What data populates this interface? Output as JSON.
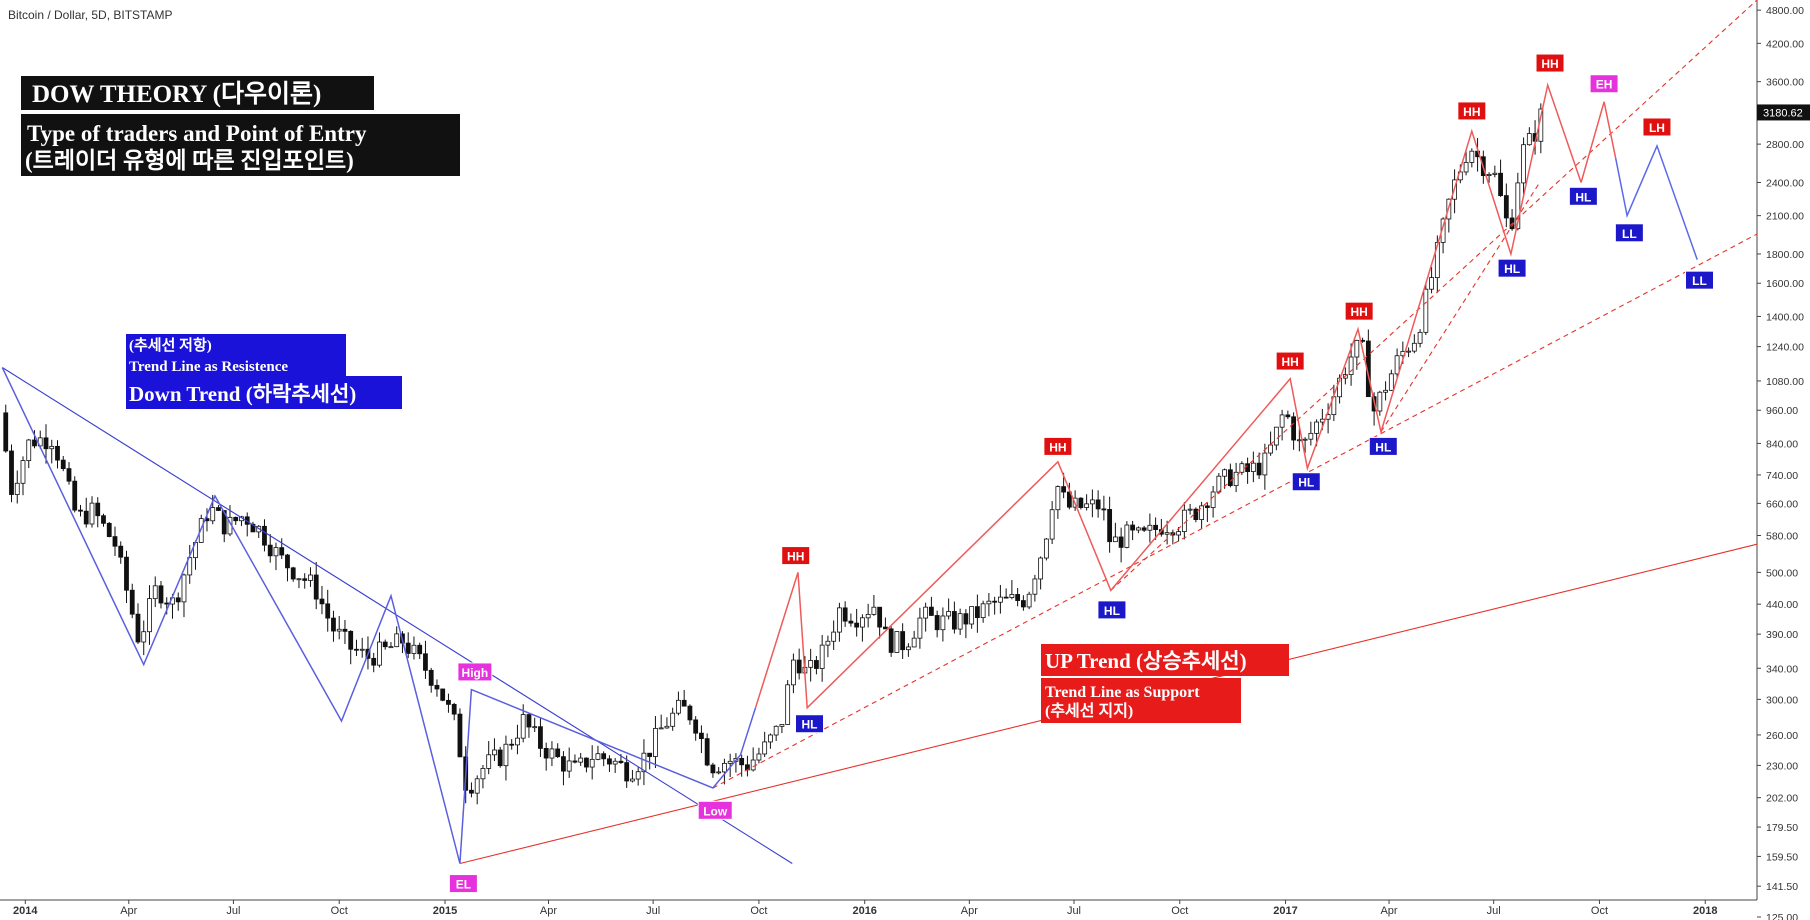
{
  "window": {
    "title": "Bitcoin / Dollar, 5D, BITSTAMP"
  },
  "price_tag": "3180.62",
  "chart_data": {
    "type": "candlestick",
    "title": "Bitcoin / Dollar, 5D, BITSTAMP",
    "y_scale": "log",
    "ylim": [
      125,
      5000
    ],
    "xlim": [
      "2013-12-10",
      "2018-02-15"
    ],
    "x_ticks": [
      {
        "date": "2014-01-01",
        "label": "2014"
      },
      {
        "date": "2014-04-01",
        "label": "Apr"
      },
      {
        "date": "2014-07-01",
        "label": "Jul"
      },
      {
        "date": "2014-10-01",
        "label": "Oct"
      },
      {
        "date": "2015-01-01",
        "label": "2015"
      },
      {
        "date": "2015-04-01",
        "label": "Apr"
      },
      {
        "date": "2015-07-01",
        "label": "Jul"
      },
      {
        "date": "2015-10-01",
        "label": "Oct"
      },
      {
        "date": "2016-01-01",
        "label": "2016"
      },
      {
        "date": "2016-04-01",
        "label": "Apr"
      },
      {
        "date": "2016-07-01",
        "label": "Jul"
      },
      {
        "date": "2016-10-01",
        "label": "Oct"
      },
      {
        "date": "2017-01-01",
        "label": "2017"
      },
      {
        "date": "2017-04-01",
        "label": "Apr"
      },
      {
        "date": "2017-07-01",
        "label": "Jul"
      },
      {
        "date": "2017-10-01",
        "label": "Oct"
      },
      {
        "date": "2018-01-01",
        "label": "2018"
      }
    ],
    "y_ticks": [
      "4800.00",
      "4200.00",
      "3600.00",
      "3180.62",
      "2800.00",
      "2400.00",
      "2100.00",
      "1800.00",
      "1600.00",
      "1400.00",
      "1240.00",
      "1080.00",
      "960.00",
      "840.00",
      "740.00",
      "660.00",
      "580.00",
      "500.00",
      "440.00",
      "390.00",
      "340.00",
      "300.00",
      "260.00",
      "230.00",
      "202.00",
      "179.50",
      "159.50",
      "141.50",
      "125.00"
    ],
    "close_path": [
      [
        "2013-12-10",
        950
      ],
      [
        "2013-12-20",
        700
      ],
      [
        "2014-01-05",
        850
      ],
      [
        "2014-01-25",
        860
      ],
      [
        "2014-02-15",
        620
      ],
      [
        "2014-03-01",
        640
      ],
      [
        "2014-03-20",
        560
      ],
      [
        "2014-04-10",
        380
      ],
      [
        "2014-04-25",
        470
      ],
      [
        "2014-05-10",
        440
      ],
      [
        "2014-05-25",
        540
      ],
      [
        "2014-06-10",
        650
      ],
      [
        "2014-06-25",
        600
      ],
      [
        "2014-07-10",
        630
      ],
      [
        "2014-07-25",
        590
      ],
      [
        "2014-08-10",
        530
      ],
      [
        "2014-08-25",
        500
      ],
      [
        "2014-09-10",
        470
      ],
      [
        "2014-09-25",
        400
      ],
      [
        "2014-10-10",
        370
      ],
      [
        "2014-10-25",
        355
      ],
      [
        "2014-11-10",
        365
      ],
      [
        "2014-11-25",
        380
      ],
      [
        "2014-12-10",
        350
      ],
      [
        "2014-12-25",
        320
      ],
      [
        "2015-01-10",
        270
      ],
      [
        "2015-01-20",
        210
      ],
      [
        "2015-02-05",
        230
      ],
      [
        "2015-02-20",
        240
      ],
      [
        "2015-03-10",
        275
      ],
      [
        "2015-03-25",
        250
      ],
      [
        "2015-04-10",
        235
      ],
      [
        "2015-04-25",
        225
      ],
      [
        "2015-05-10",
        240
      ],
      [
        "2015-05-25",
        235
      ],
      [
        "2015-06-10",
        225
      ],
      [
        "2015-06-25",
        240
      ],
      [
        "2015-07-10",
        270
      ],
      [
        "2015-07-25",
        290
      ],
      [
        "2015-08-05",
        280
      ],
      [
        "2015-08-20",
        230
      ],
      [
        "2015-09-05",
        235
      ],
      [
        "2015-09-20",
        230
      ],
      [
        "2015-10-05",
        245
      ],
      [
        "2015-10-20",
        270
      ],
      [
        "2015-11-01",
        360
      ],
      [
        "2015-11-12",
        330
      ],
      [
        "2015-11-25",
        360
      ],
      [
        "2015-12-10",
        430
      ],
      [
        "2015-12-25",
        420
      ],
      [
        "2016-01-10",
        440
      ],
      [
        "2016-01-20",
        380
      ],
      [
        "2016-02-05",
        375
      ],
      [
        "2016-02-20",
        420
      ],
      [
        "2016-03-05",
        410
      ],
      [
        "2016-03-20",
        410
      ],
      [
        "2016-04-05",
        420
      ],
      [
        "2016-04-20",
        440
      ],
      [
        "2016-05-05",
        445
      ],
      [
        "2016-05-20",
        450
      ],
      [
        "2016-06-05",
        560
      ],
      [
        "2016-06-15",
        720
      ],
      [
        "2016-06-25",
        650
      ],
      [
        "2016-07-10",
        650
      ],
      [
        "2016-07-25",
        655
      ],
      [
        "2016-08-02",
        560
      ],
      [
        "2016-08-15",
        580
      ],
      [
        "2016-08-30",
        575
      ],
      [
        "2016-09-15",
        605
      ],
      [
        "2016-09-30",
        610
      ],
      [
        "2016-10-15",
        640
      ],
      [
        "2016-10-30",
        700
      ],
      [
        "2016-11-15",
        740
      ],
      [
        "2016-11-30",
        750
      ],
      [
        "2016-12-15",
        780
      ],
      [
        "2016-12-31",
        960
      ],
      [
        "2017-01-08",
        880
      ],
      [
        "2017-01-15",
        820
      ],
      [
        "2017-01-28",
        910
      ],
      [
        "2017-02-10",
        1000
      ],
      [
        "2017-02-25",
        1180
      ],
      [
        "2017-03-08",
        1250
      ],
      [
        "2017-03-18",
        950
      ],
      [
        "2017-03-28",
        1050
      ],
      [
        "2017-04-10",
        1190
      ],
      [
        "2017-04-25",
        1300
      ],
      [
        "2017-05-10",
        1700
      ],
      [
        "2017-05-25",
        2300
      ],
      [
        "2017-06-10",
        2800
      ],
      [
        "2017-06-20",
        2600
      ],
      [
        "2017-07-01",
        2500
      ],
      [
        "2017-07-15",
        1950
      ],
      [
        "2017-07-25",
        2700
      ],
      [
        "2017-08-05",
        2900
      ],
      [
        "2017-08-15",
        3300
      ]
    ],
    "down_zigzag": [
      [
        "2013-12-12",
        1140
      ],
      [
        "2014-04-14",
        345
      ],
      [
        "2014-06-15",
        680
      ],
      [
        "2014-10-03",
        275
      ],
      [
        "2014-11-15",
        455
      ],
      [
        "2015-01-14",
        155
      ],
      [
        "2015-01-24",
        312
      ],
      [
        "2015-08-22",
        210
      ],
      [
        "2015-09-15",
        240
      ],
      [
        "2015-09-28",
        290
      ]
    ],
    "up_zigzag": [
      [
        "2015-09-28",
        290
      ],
      [
        "2015-11-04",
        500
      ],
      [
        "2015-11-12",
        290
      ],
      [
        "2016-06-17",
        780
      ],
      [
        "2016-08-02",
        465
      ],
      [
        "2017-01-05",
        1090
      ],
      [
        "2017-01-20",
        760
      ],
      [
        "2017-03-05",
        1330
      ],
      [
        "2017-03-25",
        880
      ],
      [
        "2017-06-12",
        2950
      ],
      [
        "2017-07-16",
        1800
      ],
      [
        "2017-08-17",
        3550
      ],
      [
        "2017-09-15",
        2400
      ]
    ],
    "projection": [
      [
        "2017-09-15",
        2400
      ],
      [
        "2017-10-05",
        3320
      ],
      [
        "2017-10-15",
        2650
      ],
      [
        "2017-10-25",
        2100
      ],
      [
        "2017-11-20",
        2780
      ],
      [
        "2017-12-25",
        1760
      ]
    ],
    "trend_lines": [
      {
        "kind": "down",
        "from": [
          "2013-12-12",
          1140
        ],
        "to": [
          "2015-10-30",
          155
        ]
      },
      {
        "kind": "support",
        "from": [
          "2015-01-14",
          155
        ],
        "to": [
          "2018-02-15",
          560
        ]
      },
      {
        "kind": "support-dashed",
        "from": [
          "2015-08-22",
          210
        ],
        "to": [
          "2018-02-15",
          1950
        ]
      },
      {
        "kind": "support-dashed",
        "from": [
          "2016-08-02",
          465
        ],
        "to": [
          "2018-02-15",
          5000
        ]
      },
      {
        "kind": "support-dashed",
        "from": [
          "2017-03-25",
          880
        ],
        "to": [
          "2017-08-10",
          2400
        ]
      }
    ],
    "swing_labels": [
      {
        "text": "HH",
        "kind": "hh",
        "at": [
          "2015-11-02",
          535
        ]
      },
      {
        "text": "HL",
        "kind": "hl",
        "at": [
          "2015-11-14",
          272
        ]
      },
      {
        "text": "HH",
        "kind": "hh",
        "at": [
          "2016-06-17",
          830
        ]
      },
      {
        "text": "HL",
        "kind": "hl",
        "at": [
          "2016-08-03",
          430
        ]
      },
      {
        "text": "HH",
        "kind": "hh",
        "at": [
          "2017-01-05",
          1170
        ]
      },
      {
        "text": "HL",
        "kind": "hl",
        "at": [
          "2017-01-19",
          720
        ]
      },
      {
        "text": "HH",
        "kind": "hh",
        "at": [
          "2017-03-06",
          1430
        ]
      },
      {
        "text": "HL",
        "kind": "hl",
        "at": [
          "2017-03-27",
          830
        ]
      },
      {
        "text": "HH",
        "kind": "hh",
        "at": [
          "2017-06-12",
          3200
        ]
      },
      {
        "text": "HL",
        "kind": "hl",
        "at": [
          "2017-07-17",
          1700
        ]
      },
      {
        "text": "HH",
        "kind": "hh",
        "at": [
          "2017-08-19",
          3880
        ]
      },
      {
        "text": "HL",
        "kind": "hl",
        "at": [
          "2017-09-17",
          2270
        ]
      },
      {
        "text": "EH",
        "kind": "eh",
        "at": [
          "2017-10-05",
          3570
        ]
      },
      {
        "text": "LL",
        "kind": "ll",
        "at": [
          "2017-10-27",
          1960
        ]
      },
      {
        "text": "LH",
        "kind": "lh",
        "at": [
          "2017-11-20",
          3000
        ]
      },
      {
        "text": "LL",
        "kind": "ll",
        "at": [
          "2017-12-27",
          1620
        ]
      },
      {
        "text": "High",
        "kind": "mag",
        "at": [
          "2015-01-27",
          335
        ]
      },
      {
        "text": "Low",
        "kind": "mag",
        "at": [
          "2015-08-24",
          192
        ]
      },
      {
        "text": "EL",
        "kind": "mag",
        "at": [
          "2015-01-17",
          143
        ]
      }
    ]
  },
  "annotations": {
    "dow_title": "DOW THEORY (다우이론)",
    "entry_line1": "Type of traders and Point of Entry",
    "entry_line2": "(트레이더 유형에 따른 진입포인트)",
    "down_line1": "(추세선 저항)",
    "down_line2": "Trend Line as Resistence",
    "down_line3": "Down Trend (하락추세선)",
    "up_title": "UP Trend (상승추세선)",
    "up_line1": "Trend Line as Support",
    "up_line2": "(추세선 지지)"
  },
  "colors": {
    "down": "#3a3fd0",
    "up": "#e5332a",
    "label_hh": "#e01010",
    "label_hl": "#1c17c9",
    "label_mag": "#e632dc",
    "title_bg": "#111111"
  }
}
